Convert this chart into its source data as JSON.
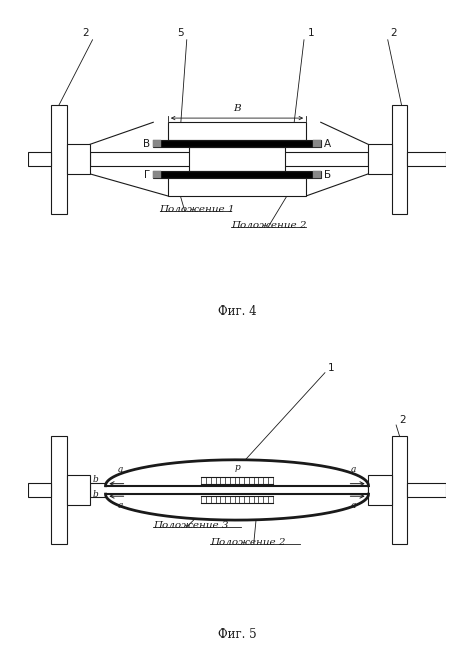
{
  "bg_color": "#ffffff",
  "lc": "#1a1a1a",
  "fig4_caption": "Фиг. 4",
  "fig5_caption": "Фиг. 5",
  "pos1": "Положение 1",
  "pos2": "Положение 2",
  "pos3": "Положение 3",
  "lbl_fontsize": 7.5,
  "caption_fontsize": 8.5,
  "small_fontsize": 6.5,
  "num_fontsize": 7.5
}
